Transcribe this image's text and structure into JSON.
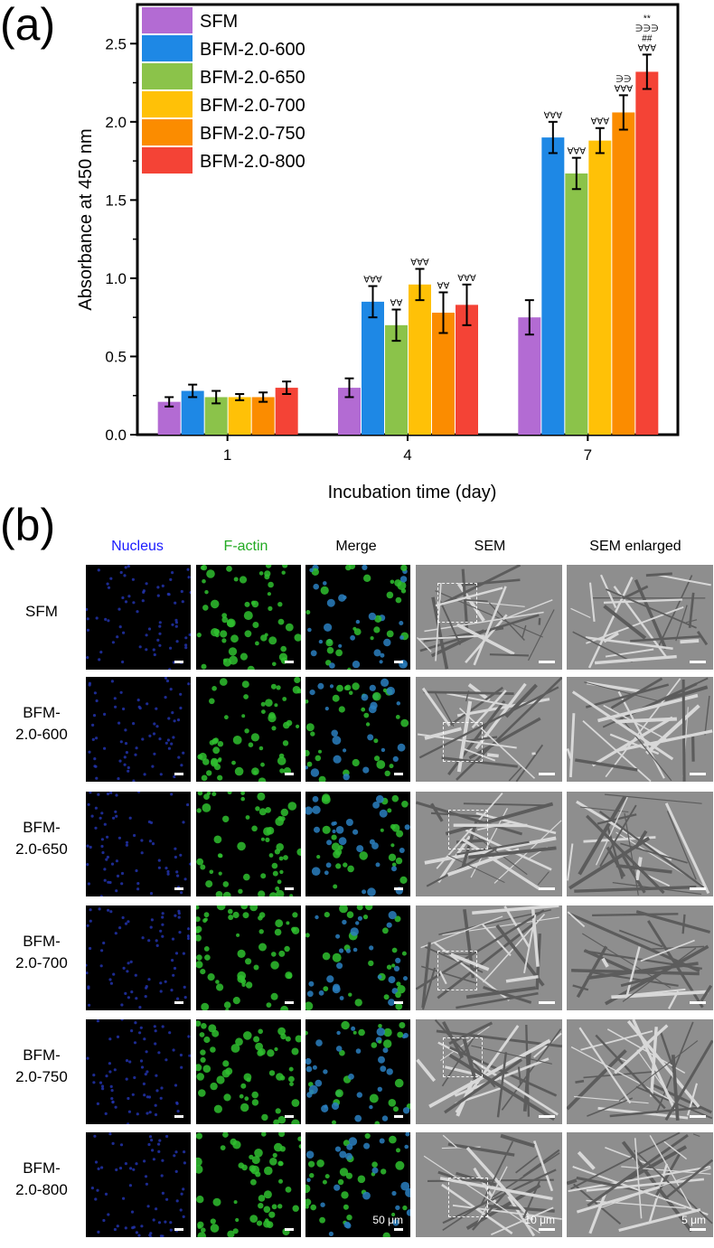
{
  "panel_labels": {
    "a": "(a)",
    "b": "(b)"
  },
  "chart_data": {
    "type": "bar",
    "xlabel": "Incubation time (day)",
    "ylabel": "Absorbance at 450 nm",
    "categories": [
      "1",
      "4",
      "7"
    ],
    "ylim": [
      0,
      2.75
    ],
    "yticks": [
      "0.0",
      "0.5",
      "1.0",
      "1.5",
      "2.0",
      "2.5"
    ],
    "legend_position": "top-left",
    "series": [
      {
        "name": "SFM",
        "color": "#b36bd3",
        "values": [
          0.21,
          0.3,
          0.75
        ],
        "errors": [
          0.03,
          0.06,
          0.11
        ],
        "marks": [
          "",
          "",
          ""
        ]
      },
      {
        "name": "BFM-2.0-600",
        "color": "#1e88e5",
        "values": [
          0.28,
          0.85,
          1.9
        ],
        "errors": [
          0.04,
          0.1,
          0.1
        ],
        "marks": [
          "",
          "∀∀∀",
          "∀∀∀"
        ]
      },
      {
        "name": "BFM-2.0-650",
        "color": "#8bc34a",
        "values": [
          0.24,
          0.7,
          1.67
        ],
        "errors": [
          0.04,
          0.1,
          0.1
        ],
        "marks": [
          "",
          "∀∀",
          "∀∀∀"
        ]
      },
      {
        "name": "BFM-2.0-700",
        "color": "#ffc107",
        "values": [
          0.24,
          0.96,
          1.88
        ],
        "errors": [
          0.02,
          0.1,
          0.08
        ],
        "marks": [
          "",
          "∀∀∀",
          "∀∀∀"
        ]
      },
      {
        "name": "BFM-2.0-750",
        "color": "#fb8c00",
        "values": [
          0.24,
          0.78,
          2.06
        ],
        "errors": [
          0.03,
          0.13,
          0.11
        ],
        "marks": [
          "",
          "∀∀",
          "∋∋|∀∀∀"
        ]
      },
      {
        "name": "BFM-2.0-800",
        "color": "#f44336",
        "values": [
          0.3,
          0.83,
          2.32
        ],
        "errors": [
          0.04,
          0.13,
          0.11
        ],
        "marks": [
          "",
          "∀∀∀",
          "**|∋∋∋|##|∀∀∀"
        ]
      }
    ]
  },
  "micrographs": {
    "columns": [
      {
        "label": "Nucleus",
        "color": "#1a1aff"
      },
      {
        "label": "F-actin",
        "color": "#22aa22"
      },
      {
        "label": "Merge",
        "color": "#000000"
      },
      {
        "label": "SEM",
        "color": "#000000"
      },
      {
        "label": "SEM enlarged",
        "color": "#000000"
      }
    ],
    "rows": [
      "SFM",
      "BFM-\n2.0-600",
      "BFM-\n2.0-650",
      "BFM-\n2.0-700",
      "BFM-\n2.0-750",
      "BFM-\n2.0-800"
    ],
    "scale_labels": {
      "merge": "50 μm",
      "sem": "10 μm",
      "sem_enlarged": "5 μm"
    }
  }
}
